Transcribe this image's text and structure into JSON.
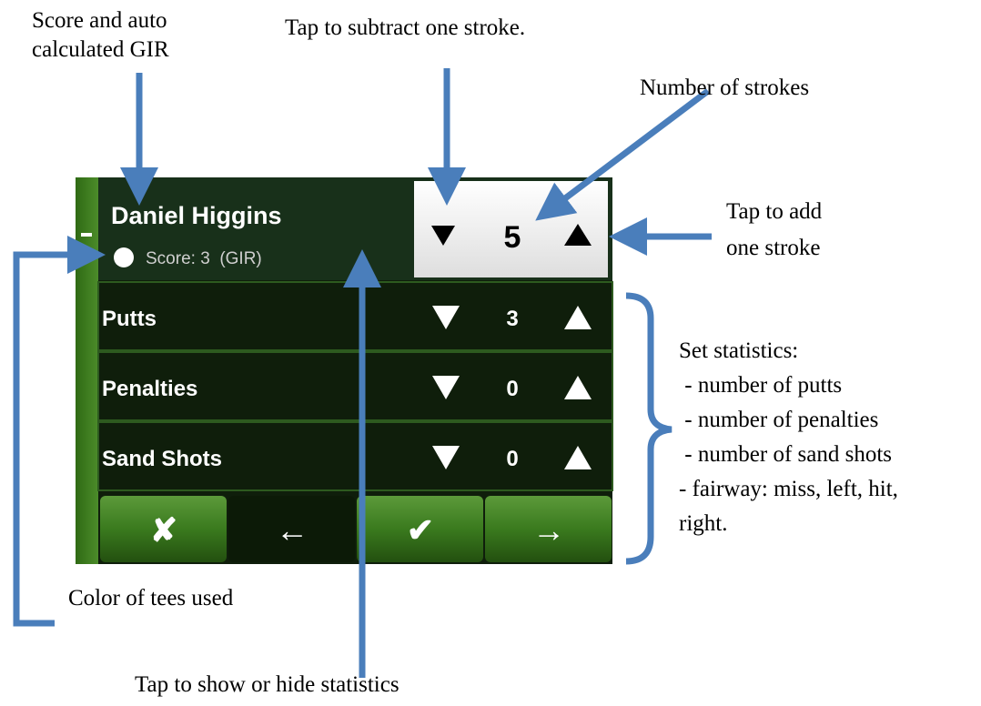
{
  "player": {
    "name": "Daniel  Higgins",
    "score": "Score: 3  (GIR)",
    "strokes": "5"
  },
  "stats": [
    {
      "label": "Putts",
      "value": "3"
    },
    {
      "label": "Penalties",
      "value": "0"
    },
    {
      "label": "Sand Shots",
      "value": "0"
    }
  ],
  "buttons": [
    "✘",
    "←",
    "✔",
    "→"
  ],
  "annotations": {
    "score_gir": [
      "Score and auto",
      "calculated GIR"
    ],
    "subtract": "Tap to subtract one stroke.",
    "strokes": "Number of strokes",
    "add": [
      "Tap to add",
      "one stroke"
    ],
    "tees": "Color of tees used",
    "toggle": "Tap to show or hide statistics",
    "set_stats": [
      "Set statistics:",
      " - number of putts",
      " - number of penalties",
      " - number of sand shots",
      "- fairway: miss, left, hit,",
      "right."
    ]
  }
}
